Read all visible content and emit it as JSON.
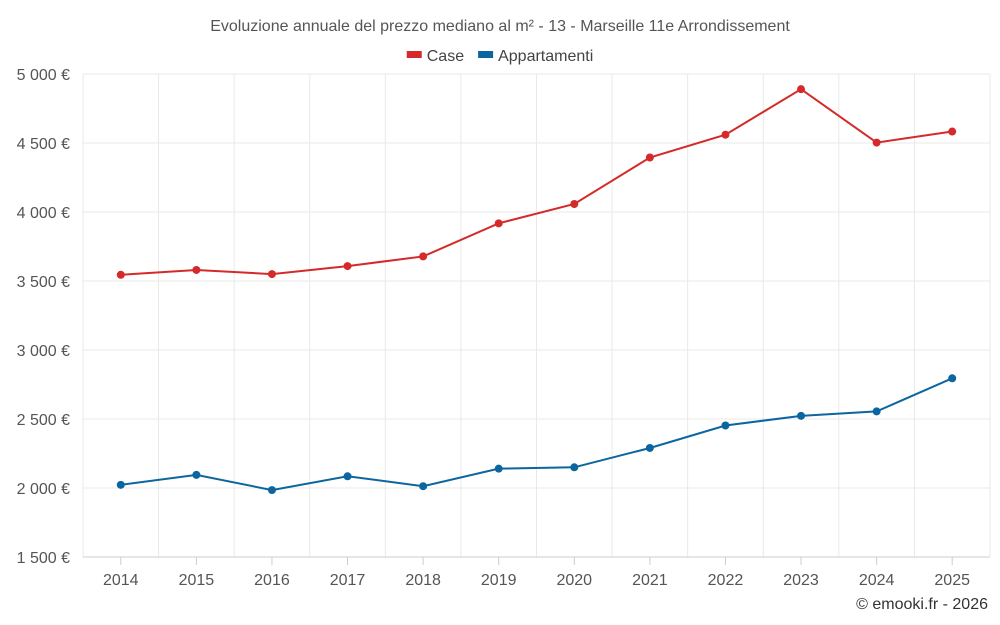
{
  "chart_data": {
    "type": "line",
    "title": "Evoluzione annuale del prezzo mediano al m² - 13 - Marseille 11e Arrondissement",
    "categories": [
      "2014",
      "2015",
      "2016",
      "2017",
      "2018",
      "2019",
      "2020",
      "2021",
      "2022",
      "2023",
      "2024",
      "2025"
    ],
    "series": [
      {
        "name": "Case",
        "color": "#d42a2a",
        "values": [
          3545,
          3580,
          3550,
          3608,
          3678,
          3918,
          4058,
          4395,
          4560,
          4890,
          4503,
          4583
        ]
      },
      {
        "name": "Appartamenti",
        "color": "#0b66a0",
        "values": [
          2023,
          2095,
          1985,
          2085,
          2013,
          2140,
          2150,
          2290,
          2453,
          2523,
          2555,
          2795
        ]
      }
    ],
    "ylim": [
      1500,
      5000
    ],
    "yticks": [
      1500,
      2000,
      2500,
      3000,
      3500,
      4000,
      4500,
      5000
    ],
    "ytick_labels": [
      "1 500 €",
      "2 000 €",
      "2 500 €",
      "3 000 €",
      "3 500 €",
      "4 000 €",
      "4 500 €",
      "5 000 €"
    ],
    "xlabel": "",
    "ylabel": "",
    "legend_position": "top-center",
    "grid": true
  },
  "credit": "© emooki.fr - 2026"
}
